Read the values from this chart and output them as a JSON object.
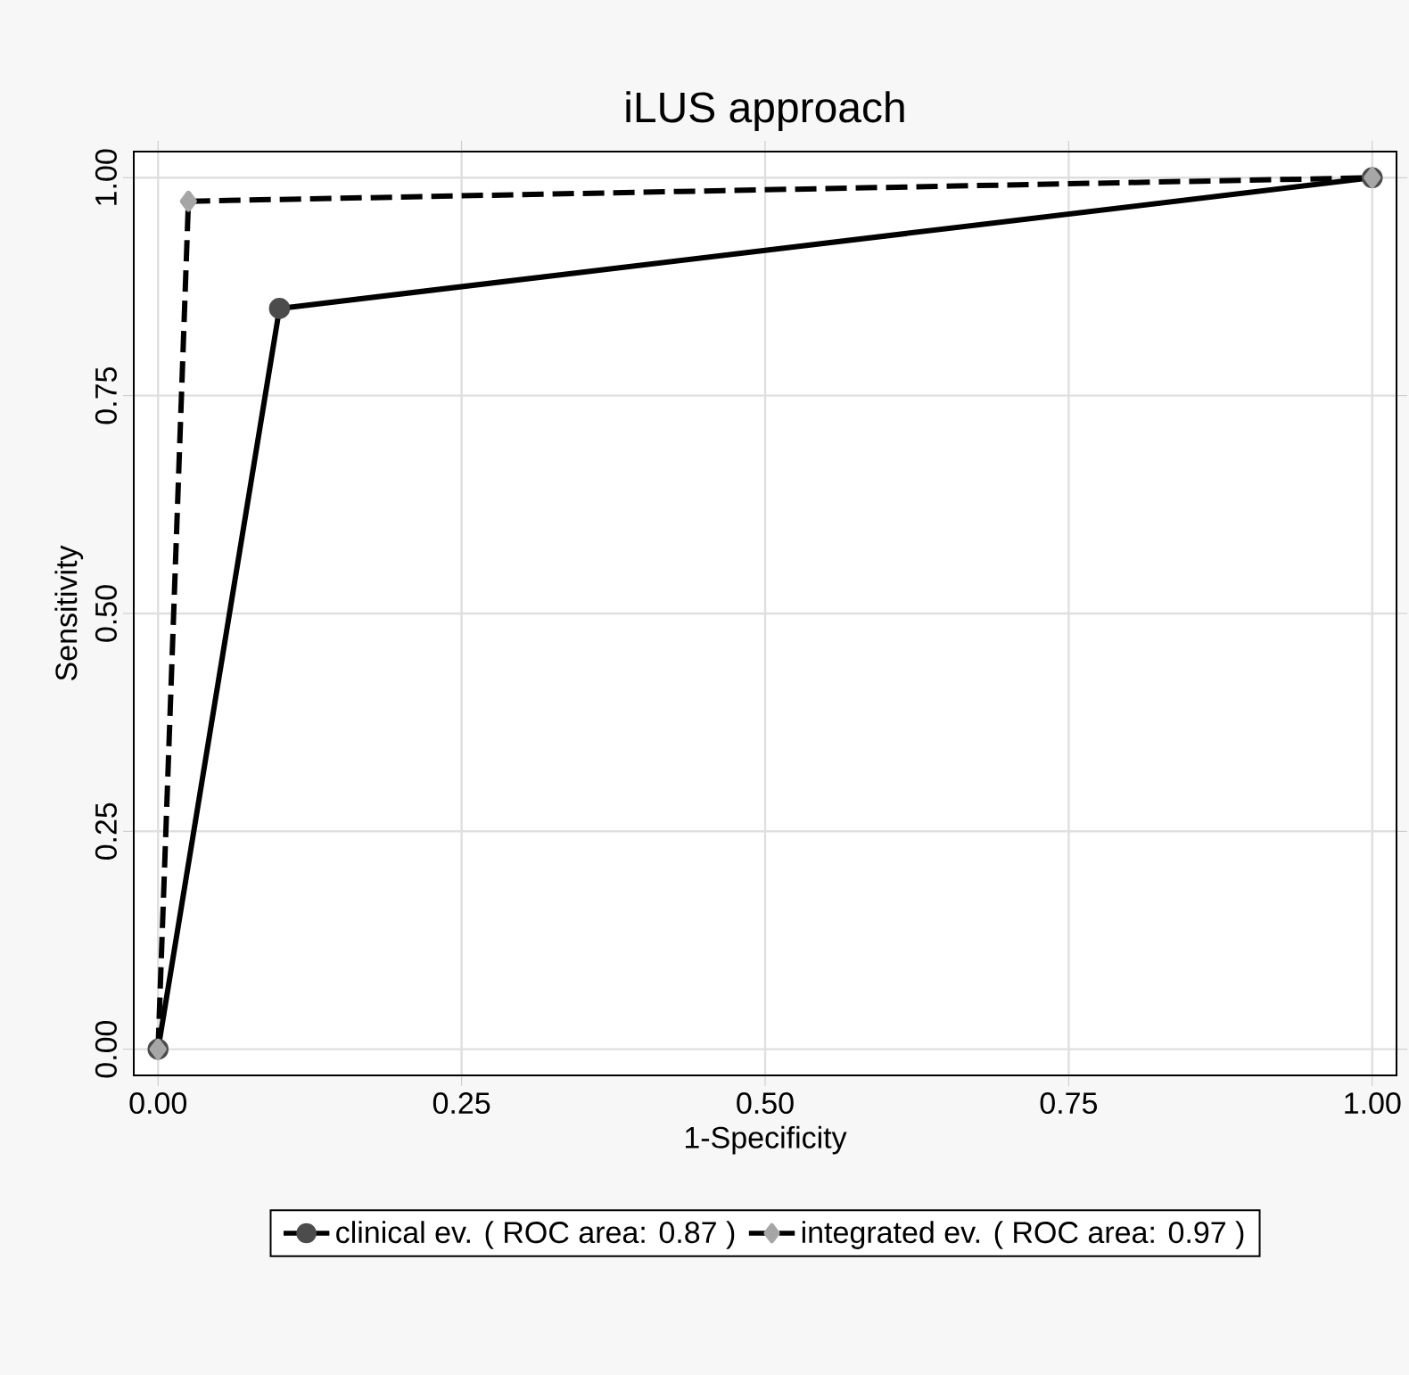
{
  "chart_data": {
    "type": "line",
    "title": "iLUS approach",
    "xlabel": "1-Specificity",
    "ylabel": "Sensitivity",
    "xlim": [
      -0.02,
      1.02
    ],
    "ylim": [
      -0.03,
      1.03
    ],
    "xticks": [
      {
        "value": 0,
        "label": "0.00"
      },
      {
        "value": 0.25,
        "label": "0.25"
      },
      {
        "value": 0.5,
        "label": "0.50"
      },
      {
        "value": 0.75,
        "label": "0.75"
      },
      {
        "value": 1,
        "label": "1.00"
      }
    ],
    "yticks": [
      {
        "value": 0,
        "label": "0.00"
      },
      {
        "value": 0.25,
        "label": "0.25"
      },
      {
        "value": 0.5,
        "label": "0.50"
      },
      {
        "value": 0.75,
        "label": "0.75"
      },
      {
        "value": 1,
        "label": "1.00"
      }
    ],
    "grid": true,
    "legend": "bottom",
    "series": [
      {
        "name": "clinical ev. ( ROC area: 0.87 )",
        "color": "#000000",
        "x": [
          0,
          0.1,
          1
        ],
        "values": [
          0,
          0.85,
          1
        ],
        "marker": "circle",
        "line_style": "solid"
      },
      {
        "name": "integrated ev. ( ROC area: 0.97 )",
        "color": "#000000",
        "x": [
          0,
          0.025,
          1
        ],
        "values": [
          0,
          0.973,
          1
        ],
        "marker": "diamond",
        "line_style": "dashed"
      }
    ]
  }
}
